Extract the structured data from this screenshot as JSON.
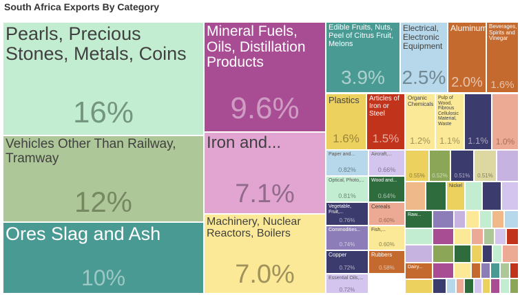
{
  "title": "South Africa Exports By Category",
  "chart_data": {
    "type": "treemap",
    "title": "South Africa Exports By Category",
    "items": [
      {
        "label": "Pearls, Precious Stones, Metals, Coins",
        "value": "16%",
        "color": "#c2edd1"
      },
      {
        "label": "Vehicles Other Than Railway, Tramway",
        "value": "12%",
        "color": "#adc798"
      },
      {
        "label": "Ores Slag and Ash",
        "value": "10%",
        "color": "#4a9a94"
      },
      {
        "label": "Mineral Fuels, Oils, Distillation Products",
        "value": "9.6%",
        "color": "#a84d93"
      },
      {
        "label": "Iron and...",
        "value": "7.1%",
        "color": "#e2a4d1"
      },
      {
        "label": "Machinery, Nuclear Reactors, Boilers",
        "value": "7.0%",
        "color": "#fbe997"
      },
      {
        "label": "Edible Fruits, Nuts, Peel of Citrus Fruit, Melons",
        "value": "3.9%",
        "color": "#4a9a94"
      },
      {
        "label": "Electrical, Electronic Equipment",
        "value": "2.5%",
        "color": "#b6d8ea"
      },
      {
        "label": "Aluminum",
        "value": "2.0%",
        "color": "#c56a2e"
      },
      {
        "label": "Beverages, Spirits and Vinegar",
        "value": "1.6%",
        "color": "#c56a2e"
      },
      {
        "label": "Plastics",
        "value": "1.6%",
        "color": "#ecd15e"
      },
      {
        "label": "Articles of Iron or Steel",
        "value": "1.5%",
        "color": "#c1331b"
      },
      {
        "label": "Organic Chemicals",
        "value": "1.2%",
        "color": "#fbe997"
      },
      {
        "label": "Pulp of Wood, Fibrous Cellulosic Material, Waste",
        "value": "1.1%",
        "color": "#fbe997"
      },
      {
        "label": "",
        "value": "1.1%",
        "color": "#3c3b6e"
      },
      {
        "label": "",
        "value": "1.0%",
        "color": "#ecaa95"
      },
      {
        "label": "Paper and...",
        "value": "0.82%",
        "color": "#b6d8ea"
      },
      {
        "label": "Aircraft,...",
        "value": "0.66%",
        "color": "#d3c5ee"
      },
      {
        "label": "Optical, Photo,...",
        "value": "0.81%",
        "color": "#c2edd1"
      },
      {
        "label": "Wood and...",
        "value": "0.64%",
        "color": "#2e6b3d"
      },
      {
        "label": "Vegetable, Fruit,...",
        "value": "0.76%",
        "color": "#3c3b6e"
      },
      {
        "label": "Cereals",
        "value": "0.60%",
        "color": "#ecaa95"
      },
      {
        "label": "Commodities...",
        "value": "0.74%",
        "color": "#8c7db8"
      },
      {
        "label": "Fish,...",
        "value": "0.60%",
        "color": "#fbe997"
      },
      {
        "label": "Copper",
        "value": "0.72%",
        "color": "#3c3b6e"
      },
      {
        "label": "Rubbers",
        "value": "0.58%",
        "color": "#c56a2e"
      },
      {
        "label": "Essential Oils,...",
        "value": "0.72%",
        "color": "#d3c5ee"
      },
      {
        "label": "",
        "value": "0.55%",
        "color": "#ecd15e"
      },
      {
        "label": "",
        "value": "0.52%",
        "color": "#8aa656"
      },
      {
        "label": "",
        "value": "0.51%",
        "color": "#3c3b6e"
      },
      {
        "label": "",
        "value": "0.51%",
        "color": "#ddd8a1"
      },
      {
        "label": "Nickel",
        "value": "",
        "color": "#ecd15e"
      },
      {
        "label": "Raw...",
        "value": "",
        "color": "#2e6b3d"
      },
      {
        "label": "Dairy...",
        "value": "",
        "color": "#c56a2e"
      }
    ]
  }
}
